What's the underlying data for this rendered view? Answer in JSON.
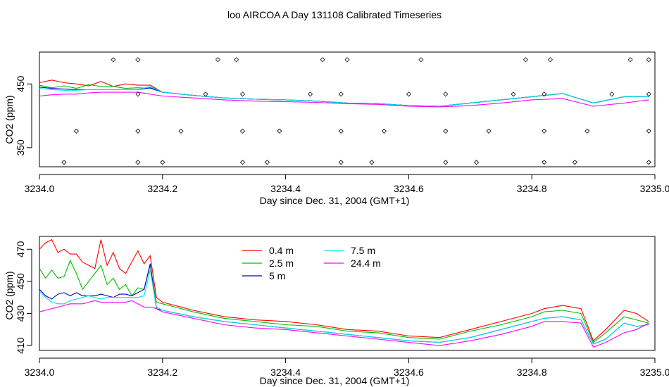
{
  "title": "loo AIRCOA A  Day 131108  Calibrated Timeseries",
  "chart_data": [
    {
      "type": "scatter",
      "xlabel": "Day since Dec. 31, 2004 (GMT+1)",
      "ylabel": "CO2 (ppm)",
      "xlim": [
        3234.0,
        3235.0
      ],
      "ylim": [
        320,
        500
      ],
      "x_ticks": [
        "3234.0",
        "3234.2",
        "3234.4",
        "3234.6",
        "3234.8",
        "3235.0"
      ],
      "y_ticks": [
        "350",
        "450"
      ],
      "series": [
        {
          "color": "#FF0000",
          "x": [
            3234.0,
            3234.02,
            3234.04,
            3234.06,
            3234.08,
            3234.1,
            3234.12,
            3234.14,
            3234.16,
            3234.18,
            3234.2,
            3234.25,
            3234.3,
            3234.35,
            3234.4,
            3234.45,
            3234.5,
            3234.55,
            3234.6,
            3234.65,
            3234.7,
            3234.75,
            3234.8,
            3234.85,
            3234.9,
            3234.95,
            3234.99
          ],
          "y": [
            452,
            456,
            452,
            450,
            447,
            454,
            446,
            450,
            448,
            448,
            437,
            432,
            428,
            426,
            425,
            423,
            420,
            419,
            416,
            415,
            420,
            425,
            430,
            435,
            420,
            430,
            430
          ]
        },
        {
          "color": "#00C000",
          "x": [
            3234.0,
            3234.02,
            3234.04,
            3234.06,
            3234.08,
            3234.1,
            3234.12,
            3234.14,
            3234.16,
            3234.18,
            3234.2,
            3234.25,
            3234.3,
            3234.35,
            3234.4,
            3234.45,
            3234.5,
            3234.55,
            3234.6,
            3234.65,
            3234.7,
            3234.75,
            3234.8,
            3234.85,
            3234.9,
            3234.95,
            3234.99
          ],
          "y": [
            448,
            444,
            447,
            443,
            449,
            446,
            446,
            443,
            444,
            443,
            437,
            432,
            428,
            426,
            425,
            423,
            420,
            419,
            416,
            415,
            420,
            425,
            430,
            435,
            420,
            430,
            430
          ]
        },
        {
          "color": "#0000FF",
          "x": [
            3234.0,
            3234.02,
            3234.04,
            3234.06,
            3234.08,
            3234.1,
            3234.12,
            3234.14,
            3234.16,
            3234.18,
            3234.2,
            3234.25,
            3234.3,
            3234.35,
            3234.4,
            3234.45,
            3234.5,
            3234.55,
            3234.6,
            3234.65,
            3234.7,
            3234.75,
            3234.8,
            3234.85,
            3234.9,
            3234.95,
            3234.99
          ],
          "y": [
            445,
            443,
            442,
            441,
            441,
            441,
            441,
            441,
            441,
            444,
            437,
            432,
            428,
            426,
            425,
            423,
            420,
            419,
            416,
            415,
            420,
            425,
            430,
            435,
            420,
            430,
            430
          ]
        },
        {
          "color": "#00E0E0",
          "x": [
            3234.0,
            3234.02,
            3234.04,
            3234.06,
            3234.08,
            3234.1,
            3234.12,
            3234.14,
            3234.16,
            3234.18,
            3234.2,
            3234.25,
            3234.3,
            3234.35,
            3234.4,
            3234.45,
            3234.5,
            3234.55,
            3234.6,
            3234.65,
            3234.7,
            3234.75,
            3234.8,
            3234.85,
            3234.9,
            3234.95,
            3234.99
          ],
          "y": [
            443,
            441,
            440,
            440,
            441,
            441,
            441,
            441,
            441,
            446,
            437,
            432,
            428,
            426,
            425,
            423,
            420,
            419,
            416,
            415,
            420,
            425,
            430,
            435,
            420,
            430,
            430
          ]
        },
        {
          "color": "#FF00FF",
          "x": [
            3234.0,
            3234.02,
            3234.04,
            3234.06,
            3234.08,
            3234.1,
            3234.12,
            3234.14,
            3234.16,
            3234.18,
            3234.2,
            3234.25,
            3234.3,
            3234.35,
            3234.4,
            3234.45,
            3234.5,
            3234.55,
            3234.6,
            3234.65,
            3234.7,
            3234.75,
            3234.8,
            3234.85,
            3234.9,
            3234.95,
            3234.99
          ],
          "y": [
            431,
            433,
            434,
            434,
            436,
            437,
            437,
            437,
            437,
            434,
            431,
            428,
            425,
            423,
            422,
            421,
            419,
            418,
            415,
            414,
            416,
            420,
            425,
            427,
            415,
            420,
            425
          ]
        }
      ],
      "markers": {
        "x": [
          3234.04,
          3234.06,
          3234.12,
          3234.16,
          3234.16,
          3234.16,
          3234.16,
          3234.2,
          3234.23,
          3234.27,
          3234.29,
          3234.32,
          3234.33,
          3234.33,
          3234.33,
          3234.37,
          3234.39,
          3234.44,
          3234.46,
          3234.49,
          3234.49,
          3234.49,
          3234.5,
          3234.54,
          3234.56,
          3234.6,
          3234.62,
          3234.66,
          3234.66,
          3234.66,
          3234.71,
          3234.73,
          3234.77,
          3234.79,
          3234.82,
          3234.82,
          3234.82,
          3234.83,
          3234.87,
          3234.89,
          3234.93,
          3234.96,
          3234.99,
          3234.99,
          3234.99,
          3234.99
        ],
        "y": [
          327,
          376,
          488,
          327,
          376,
          434,
          488,
          327,
          376,
          434,
          488,
          488,
          376,
          327,
          434,
          327,
          376,
          434,
          488,
          327,
          376,
          434,
          488,
          327,
          376,
          434,
          488,
          327,
          376,
          434,
          327,
          376,
          434,
          488,
          434,
          376,
          327,
          488,
          327,
          376,
          434,
          488,
          488,
          434,
          376,
          327
        ]
      }
    },
    {
      "type": "line",
      "xlabel": "Day since Dec. 31, 2004 (GMT+1)",
      "ylabel": "CO2 (ppm)",
      "xlim": [
        3234.0,
        3235.0
      ],
      "ylim": [
        407,
        478
      ],
      "x_ticks": [
        "3234.0",
        "3234.2",
        "3234.4",
        "3234.6",
        "3234.8",
        "3235.0"
      ],
      "y_ticks": [
        "410",
        "430",
        "450",
        "470"
      ],
      "legend": "top-center",
      "series": [
        {
          "name": "0.4 m",
          "color": "#FF0000",
          "x": [
            3234.0,
            3234.01,
            3234.02,
            3234.03,
            3234.04,
            3234.05,
            3234.06,
            3234.07,
            3234.08,
            3234.09,
            3234.1,
            3234.11,
            3234.12,
            3234.13,
            3234.14,
            3234.15,
            3234.16,
            3234.17,
            3234.18,
            3234.19,
            3234.2,
            3234.25,
            3234.3,
            3234.35,
            3234.4,
            3234.45,
            3234.5,
            3234.55,
            3234.6,
            3234.65,
            3234.7,
            3234.75,
            3234.8,
            3234.82,
            3234.85,
            3234.88,
            3234.9,
            3234.92,
            3234.95,
            3234.97,
            3234.99
          ],
          "y": [
            470,
            474,
            476,
            468,
            470,
            467,
            467,
            462,
            460,
            458,
            476,
            460,
            468,
            458,
            455,
            462,
            469,
            461,
            466,
            440,
            437,
            432,
            428,
            426,
            425,
            423,
            420,
            419,
            416,
            415,
            420,
            425,
            430,
            433,
            435,
            433,
            413,
            420,
            432,
            430,
            425
          ]
        },
        {
          "name": "2.5 m",
          "color": "#00C000",
          "x": [
            3234.0,
            3234.01,
            3234.02,
            3234.03,
            3234.04,
            3234.05,
            3234.06,
            3234.07,
            3234.08,
            3234.09,
            3234.1,
            3234.11,
            3234.12,
            3234.13,
            3234.14,
            3234.15,
            3234.16,
            3234.17,
            3234.18,
            3234.19,
            3234.2,
            3234.25,
            3234.3,
            3234.35,
            3234.4,
            3234.45,
            3234.5,
            3234.55,
            3234.6,
            3234.65,
            3234.7,
            3234.75,
            3234.8,
            3234.82,
            3234.85,
            3234.88,
            3234.9,
            3234.92,
            3234.95,
            3234.97,
            3234.99
          ],
          "y": [
            458,
            452,
            457,
            452,
            453,
            463,
            455,
            445,
            450,
            455,
            460,
            448,
            452,
            445,
            448,
            441,
            446,
            445,
            460,
            437,
            436,
            431,
            427,
            425,
            423,
            422,
            419,
            418,
            415,
            414,
            419,
            423,
            428,
            431,
            432,
            430,
            412,
            418,
            428,
            426,
            424
          ]
        },
        {
          "name": "5 m",
          "color": "#0000C0",
          "x": [
            3234.0,
            3234.01,
            3234.02,
            3234.03,
            3234.04,
            3234.05,
            3234.06,
            3234.07,
            3234.08,
            3234.09,
            3234.1,
            3234.11,
            3234.12,
            3234.13,
            3234.14,
            3234.15,
            3234.16,
            3234.17,
            3234.18,
            3234.19,
            3234.2,
            3234.25,
            3234.3,
            3234.35,
            3234.4,
            3234.45,
            3234.5,
            3234.55,
            3234.6,
            3234.65,
            3234.7,
            3234.75,
            3234.8,
            3234.82,
            3234.85,
            3234.88,
            3234.9,
            3234.92,
            3234.95,
            3234.97,
            3234.99
          ],
          "y": [
            445,
            441,
            439,
            442,
            443,
            441,
            443,
            441,
            441,
            441,
            442,
            441,
            440,
            442,
            442,
            441,
            443,
            445,
            461,
            433,
            432,
            428,
            425,
            423,
            421,
            419,
            417,
            415,
            413,
            412,
            415,
            420,
            425,
            427,
            428,
            426,
            411,
            414,
            424,
            422,
            423
          ]
        },
        {
          "name": "7.5 m",
          "color": "#00E0E0",
          "x": [
            3234.0,
            3234.01,
            3234.02,
            3234.03,
            3234.04,
            3234.05,
            3234.06,
            3234.07,
            3234.08,
            3234.09,
            3234.1,
            3234.11,
            3234.12,
            3234.13,
            3234.14,
            3234.15,
            3234.16,
            3234.17,
            3234.18,
            3234.19,
            3234.2,
            3234.25,
            3234.3,
            3234.35,
            3234.4,
            3234.45,
            3234.5,
            3234.55,
            3234.6,
            3234.65,
            3234.7,
            3234.75,
            3234.8,
            3234.82,
            3234.85,
            3234.88,
            3234.9,
            3234.92,
            3234.95,
            3234.97,
            3234.99
          ],
          "y": [
            444,
            440,
            437,
            436,
            436,
            438,
            439,
            440,
            441,
            440,
            439,
            440,
            440,
            440,
            440,
            440,
            440,
            441,
            457,
            434,
            432,
            428,
            425,
            423,
            421,
            419,
            417,
            415,
            413,
            412,
            415,
            420,
            425,
            427,
            428,
            426,
            411,
            414,
            424,
            422,
            423
          ]
        },
        {
          "name": "24.4 m",
          "color": "#FF00FF",
          "x": [
            3234.0,
            3234.01,
            3234.02,
            3234.03,
            3234.04,
            3234.05,
            3234.06,
            3234.07,
            3234.08,
            3234.09,
            3234.1,
            3234.11,
            3234.12,
            3234.13,
            3234.14,
            3234.15,
            3234.16,
            3234.17,
            3234.18,
            3234.19,
            3234.2,
            3234.25,
            3234.3,
            3234.35,
            3234.4,
            3234.45,
            3234.5,
            3234.55,
            3234.6,
            3234.65,
            3234.7,
            3234.75,
            3234.8,
            3234.82,
            3234.85,
            3234.88,
            3234.9,
            3234.92,
            3234.95,
            3234.97,
            3234.99
          ],
          "y": [
            431,
            432,
            433,
            434,
            435,
            436,
            436,
            436,
            437,
            438,
            437,
            437,
            437,
            437,
            437,
            438,
            436,
            434,
            434,
            433,
            431,
            427,
            423,
            421,
            420,
            418,
            416,
            414,
            412,
            410,
            413,
            417,
            422,
            425,
            425,
            424,
            409,
            412,
            418,
            420,
            424
          ]
        }
      ]
    }
  ]
}
